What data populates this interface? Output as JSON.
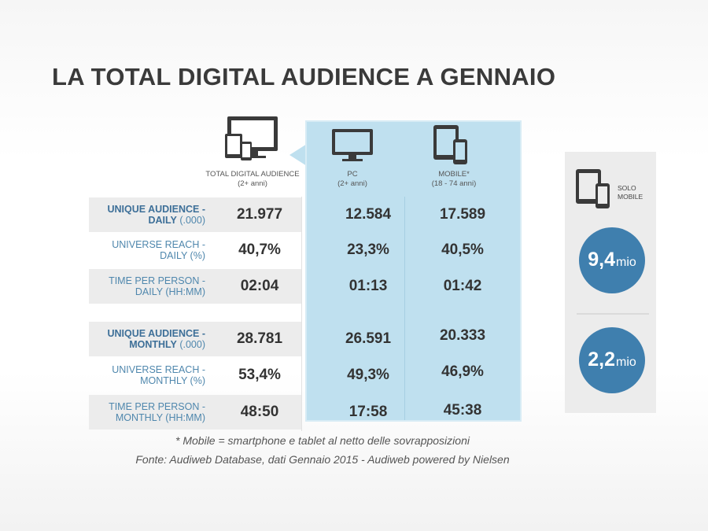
{
  "title": "LA TOTAL DIGITAL AUDIENCE A GENNAIO",
  "columns": [
    {
      "label": "TOTAL DIGITAL AUDIENCE",
      "sub": "(2+ anni)",
      "icon": "devices-icon"
    },
    {
      "label": "PC",
      "sub": "(2+ anni)",
      "icon": "monitor-icon"
    },
    {
      "label": "MOBILE*",
      "sub": "(18 - 74 anni)",
      "icon": "mobile-devices-icon"
    }
  ],
  "rows": [
    {
      "label_main": "UNIQUE AUDIENCE - DAILY",
      "label_line1": "UNIQUE AUDIENCE -",
      "label_line2": "DAILY",
      "unit": " (.000)",
      "bold": true,
      "values": [
        "21.977",
        "12.584",
        "17.589"
      ]
    },
    {
      "label_line1": "UNIVERSE REACH -",
      "label_line2": "DAILY (%)",
      "bold": false,
      "values": [
        "40,7%",
        "23,3%",
        "40,5%"
      ]
    },
    {
      "label_line1": "TIME PER PERSON -",
      "label_line2": "DAILY (HH:MM)",
      "bold": false,
      "values": [
        "02:04",
        "01:13",
        "01:42"
      ]
    },
    {
      "label_line1": "UNIQUE AUDIENCE -",
      "label_line2": "MONTHLY",
      "unit": " (.000)",
      "bold": true,
      "values": [
        "28.781",
        "26.591",
        "20.333"
      ]
    },
    {
      "label_line1": "UNIVERSE REACH -",
      "label_line2": "MONTHLY (%)",
      "bold": false,
      "values": [
        "53,4%",
        "49,3%",
        "46,9%"
      ]
    },
    {
      "label_line1": "TIME PER PERSON -",
      "label_line2": "MONTHLY (HH:MM)",
      "bold": false,
      "values": [
        "48:50",
        "17:58",
        "45:38"
      ]
    }
  ],
  "side": {
    "label_line1": "SOLO",
    "label_line2": "MOBILE",
    "daily_value": "9,4",
    "daily_unit": "mio",
    "monthly_value": "2,2",
    "monthly_unit": "mio"
  },
  "footnote": "* Mobile = smartphone e tablet al netto delle sovrapposizioni",
  "source": "Fonte: Audiweb Database, dati Gennaio 2015 - Audiweb powered by Nielsen",
  "colors": {
    "title": "#3a3a3a",
    "highlight_panel": "#bfe0ef",
    "label_blue": "#4f87ad",
    "circle": "#3f7fae"
  }
}
